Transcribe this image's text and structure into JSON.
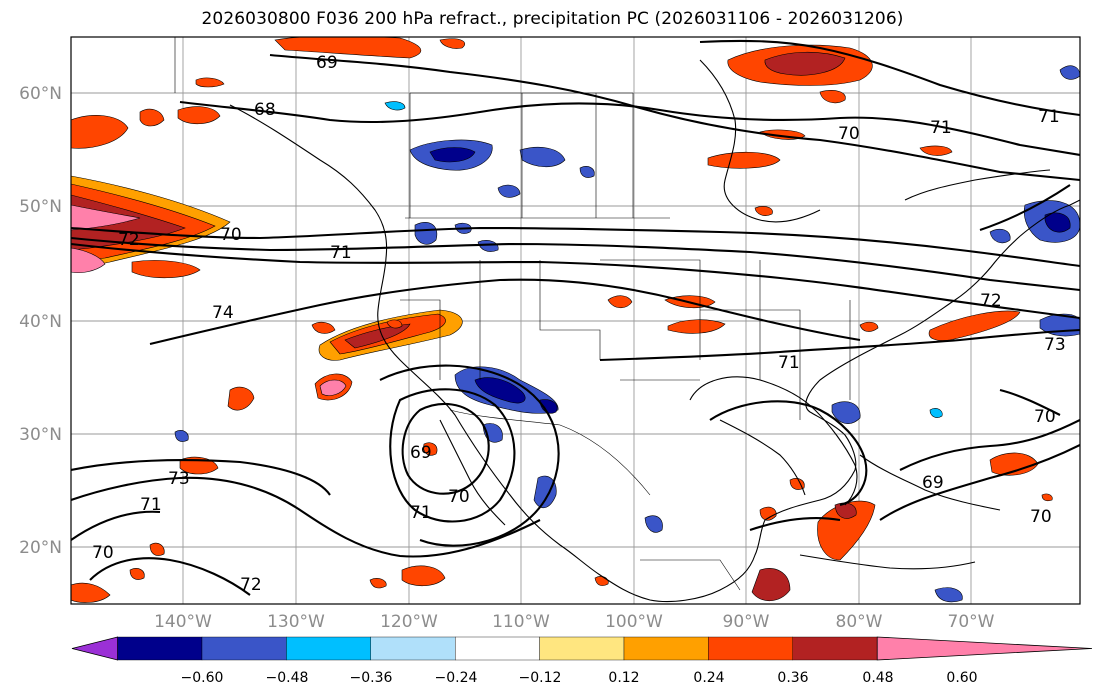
{
  "title": "2026030800 F036 200 hPa refract., precipitation PC (2026031106 - 2026031206)",
  "map": {
    "lon_range": [
      -150,
      -60
    ],
    "lat_range": [
      15,
      65
    ],
    "lat_labels": [
      "60°N",
      "50°N",
      "40°N",
      "30°N",
      "20°N"
    ],
    "lon_labels": [
      "140°W",
      "130°W",
      "120°W",
      "110°W",
      "100°W",
      "90°W",
      "80°W",
      "70°W"
    ],
    "label_color": "#8c8c8c",
    "contour_labels": [
      "69",
      "68",
      "70",
      "71",
      "72",
      "71",
      "70",
      "71",
      "74",
      "69",
      "70",
      "71",
      "73",
      "72",
      "71",
      "70",
      "71",
      "72",
      "73",
      "70",
      "69",
      "70"
    ]
  },
  "colorbar": {
    "ticks": [
      "−0.60",
      "−0.48",
      "−0.36",
      "−0.24",
      "−0.12",
      "0.12",
      "0.24",
      "0.36",
      "0.48",
      "0.60"
    ],
    "colors": [
      "#9b30d6",
      "#00008b",
      "#3a55c8",
      "#00bfff",
      "#b0e0fa",
      "#ffffff",
      "#ffe680",
      "#ffa000",
      "#ff4500",
      "#b22222",
      "#ff80aa"
    ]
  }
}
